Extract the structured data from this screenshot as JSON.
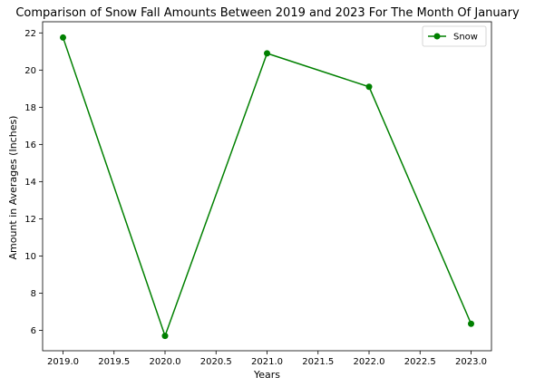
{
  "chart_data": {
    "type": "line",
    "title": "Comparison of Snow Fall Amounts Between 2019 and 2023 For The Month Of January",
    "xlabel": "Years",
    "ylabel": "Amount in Averages (Inches)",
    "x": [
      2019,
      2020,
      2021,
      2022,
      2023
    ],
    "series": [
      {
        "name": "Snow",
        "values": [
          21.75,
          5.7,
          20.9,
          19.1,
          6.35
        ],
        "color": "#008000",
        "marker": "circle"
      }
    ],
    "xlim": [
      2018.8,
      2023.2
    ],
    "ylim": [
      4.9,
      22.6
    ],
    "xticks": [
      "2019.0",
      "2019.5",
      "2020.0",
      "2020.5",
      "2021.0",
      "2021.5",
      "2022.0",
      "2022.5",
      "2023.0"
    ],
    "yticks": [
      "6",
      "8",
      "10",
      "12",
      "14",
      "16",
      "18",
      "20",
      "22"
    ],
    "grid": false,
    "legend_position": "top-right"
  }
}
